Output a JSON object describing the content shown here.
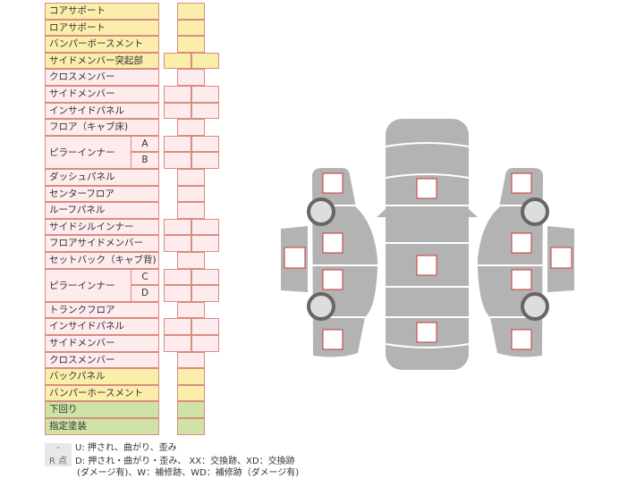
{
  "rows": [
    {
      "label": "コアサポート",
      "cells": "single",
      "color": "yel"
    },
    {
      "label": "ロアサポート",
      "cells": "single",
      "color": "yel"
    },
    {
      "label": "バンパーボースメント",
      "cells": "single",
      "color": "yel"
    },
    {
      "label": "サイドメンバー突起部",
      "cells": "double",
      "color": "yel"
    },
    {
      "label": "クロスメンバー",
      "cells": "single",
      "color": "pink"
    },
    {
      "label": "サイドメンバー",
      "cells": "double",
      "color": "pink"
    },
    {
      "label": "インサイドパネル",
      "cells": "double",
      "color": "pink"
    },
    {
      "label": "フロア（キャブ床)",
      "cells": "single",
      "color": "pink"
    },
    {
      "label": "ピラーインナー",
      "sub": "A",
      "cells": "double",
      "color": "pink",
      "group": "start"
    },
    {
      "label": "",
      "sub": "B",
      "cells": "double",
      "color": "pink",
      "group": "end"
    },
    {
      "label": "ダッシュパネル",
      "cells": "single",
      "color": "pink"
    },
    {
      "label": "センターフロア",
      "cells": "single",
      "color": "pink"
    },
    {
      "label": "ルーフパネル",
      "cells": "single",
      "color": "pink"
    },
    {
      "label": "サイドシルインナー",
      "cells": "double",
      "color": "pink"
    },
    {
      "label": "フロアサイドメンバー",
      "cells": "double",
      "color": "pink"
    },
    {
      "label": "セットバック（キャブ背)",
      "cells": "single",
      "color": "pink"
    },
    {
      "label": "ピラーインナー",
      "sub": "C",
      "cells": "double",
      "color": "pink",
      "group": "start"
    },
    {
      "label": "",
      "sub": "D",
      "cells": "double",
      "color": "pink",
      "group": "end"
    },
    {
      "label": "トランクフロア",
      "cells": "single",
      "color": "pink"
    },
    {
      "label": "インサイドパネル",
      "cells": "double",
      "color": "pink"
    },
    {
      "label": "サイドメンバー",
      "cells": "double",
      "color": "pink"
    },
    {
      "label": "クロスメンバー",
      "cells": "single",
      "color": "pink"
    },
    {
      "label": "バックパネル",
      "cells": "single",
      "color": "yel"
    },
    {
      "label": "バンパーホースメント",
      "cells": "single",
      "color": "yel"
    },
    {
      "label": "下回り",
      "cells": "single",
      "color": "grn"
    },
    {
      "label": "指定塗装",
      "cells": "single",
      "color": "grn"
    }
  ],
  "legend": {
    "key1": "-",
    "text1": "U: 押され、曲がり、歪み",
    "key2": "R 点",
    "text2": "D: 押され・曲がり・歪み、 XX：交換跡、XD：交換跡",
    "text3": "(ダメージ有)、W：補修跡、WD：補修跡（ダメージ有)"
  },
  "colors": {
    "body": "#b3b3b3",
    "marker": "#cc3333",
    "wheel": "#666666"
  }
}
